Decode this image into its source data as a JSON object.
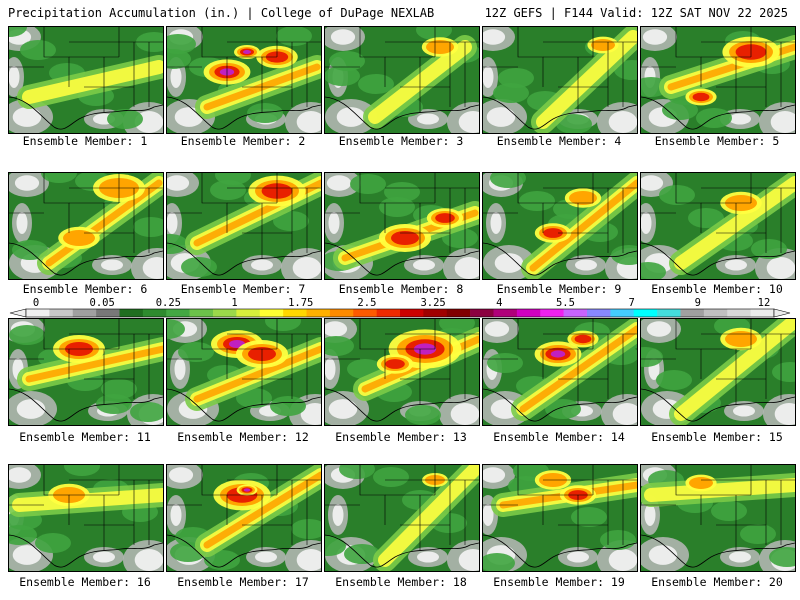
{
  "header": {
    "title": "Precipitation Accumulation (in.) | College of DuPage NEXLAB",
    "run_info": "12Z GEFS | F144 Valid: 12Z SAT NOV 22 2025"
  },
  "colorbar": {
    "labels": [
      "0",
      "0.05",
      "0.25",
      "1",
      "1.75",
      "2.5",
      "3.25",
      "4",
      "5.5",
      "7",
      "9",
      "12"
    ],
    "colors": [
      "#f0f0f0",
      "#c8c8c8",
      "#a0a0a0",
      "#787878",
      "#1f6e1f",
      "#2e8b2e",
      "#43a843",
      "#6cc24a",
      "#9bd84a",
      "#d7ef3c",
      "#ffff32",
      "#ffd700",
      "#ffb000",
      "#ff8a00",
      "#ff5a00",
      "#ee2a00",
      "#cc0000",
      "#a00000",
      "#800000",
      "#8b0040",
      "#b0007a",
      "#d000c0",
      "#ee22ee",
      "#c864ff",
      "#8888ff",
      "#44ccff",
      "#00ffff",
      "#44dddd",
      "#a0a0a0",
      "#c0c0c0",
      "#d8d8d8",
      "#ececec"
    ]
  },
  "map_colors": {
    "green_dark": "#2a7f2a",
    "green_mid": "#3fa43f",
    "green_light": "#7ccc48",
    "yellow": "#ffff40",
    "orange": "#ffa500",
    "red": "#e82000",
    "magenta": "#c020c0",
    "gray": "#b8b8b8",
    "white": "#f4f4f4"
  },
  "members": [
    {
      "label": "Ensemble Member: 1"
    },
    {
      "label": "Ensemble Member: 2"
    },
    {
      "label": "Ensemble Member: 3"
    },
    {
      "label": "Ensemble Member: 4"
    },
    {
      "label": "Ensemble Member: 5"
    },
    {
      "label": "Ensemble Member: 6"
    },
    {
      "label": "Ensemble Member: 7"
    },
    {
      "label": "Ensemble Member: 8"
    },
    {
      "label": "Ensemble Member: 9"
    },
    {
      "label": "Ensemble Member: 10"
    },
    {
      "label": "Ensemble Member: 11"
    },
    {
      "label": "Ensemble Member: 12"
    },
    {
      "label": "Ensemble Member: 13"
    },
    {
      "label": "Ensemble Member: 14"
    },
    {
      "label": "Ensemble Member: 15"
    },
    {
      "label": "Ensemble Member: 16"
    },
    {
      "label": "Ensemble Member: 17"
    },
    {
      "label": "Ensemble Member: 18"
    },
    {
      "label": "Ensemble Member: 19"
    },
    {
      "label": "Ensemble Member: 20"
    }
  ]
}
